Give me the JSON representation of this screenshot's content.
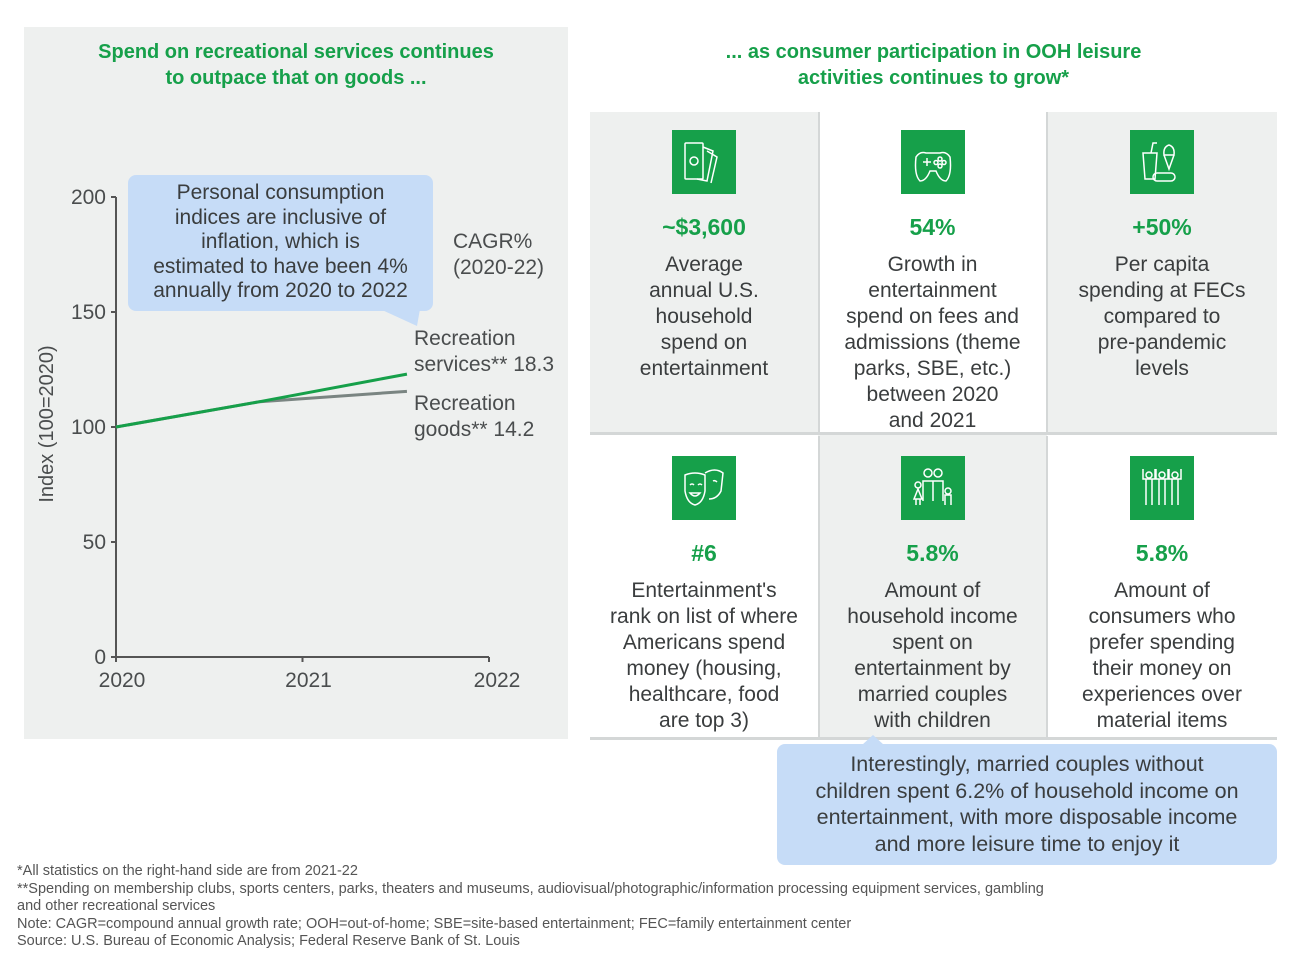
{
  "left": {
    "title_line1": "Spend on recreational services continues",
    "title_line2": "to outpace that on goods ...",
    "callout": [
      "Personal consumption",
      "indices are inclusive of",
      "inflation, which is",
      "estimated to have been 4%",
      "annually from 2020 to 2022"
    ],
    "cagr_label": [
      "CAGR%",
      "(2020-22)"
    ],
    "series_labels": {
      "services": [
        "Recreation",
        "services** 18.3"
      ],
      "goods": [
        "Recreation",
        "goods** 14.2"
      ]
    }
  },
  "chart_data": {
    "type": "line",
    "title": "",
    "xlabel": "",
    "ylabel": "Index (100=2020)",
    "xlim": [
      2020,
      2022
    ],
    "ylim": [
      0,
      200
    ],
    "x_ticks": [
      "2020",
      "2021",
      "2022"
    ],
    "y_ticks": [
      "0",
      "50",
      "100",
      "150",
      "200"
    ],
    "grid": false,
    "series": [
      {
        "name": "Recreation services** 18.3",
        "color": "#16a04a",
        "x": [
          2020,
          2020.77,
          2021.56
        ],
        "values": [
          100,
          111,
          123
        ]
      },
      {
        "name": "Recreation goods** 14.2",
        "color": "#7a8582",
        "x": [
          2020,
          2020.77,
          2021.56
        ],
        "values": [
          100,
          111,
          115.5
        ]
      }
    ]
  },
  "right": {
    "title_line1": "... as consumer participation in OOH leisure",
    "title_line2": "activities continues to grow*",
    "cells": [
      {
        "icon": "money-icon",
        "stat": "~$3,600",
        "desc": [
          "Average",
          "annual U.S.",
          "household",
          "spend on",
          "entertainment"
        ]
      },
      {
        "icon": "gamepad-icon",
        "stat": "54%",
        "desc": [
          "Growth in",
          "entertainment",
          "spend on fees and",
          "admissions (theme",
          "parks, SBE, etc.)",
          "between 2020",
          "and 2021"
        ]
      },
      {
        "icon": "snacks-icon",
        "stat": "+50%",
        "desc": [
          "Per capita",
          "spending at FECs",
          "compared to",
          "pre-pandemic",
          "levels"
        ]
      },
      {
        "icon": "theater-masks-icon",
        "stat": "#6",
        "desc": [
          "Entertainment's",
          "rank on list of where",
          "Americans spend",
          "money (housing,",
          "healthcare, food",
          "are top 3)"
        ]
      },
      {
        "icon": "family-icon",
        "stat": "5.8%",
        "desc": [
          "Amount of",
          "household income",
          "spent on",
          "entertainment by",
          "married couples",
          "with children"
        ]
      },
      {
        "icon": "cheering-people-icon",
        "stat": "5.8%",
        "desc": [
          "Amount of",
          "consumers who",
          "prefer spending",
          "their money on",
          "experiences over",
          "material items"
        ]
      }
    ],
    "callout": [
      "Interestingly, married couples without",
      "children spent 6.2% of household income on",
      "entertainment, with more disposable income",
      "and more leisure time to enjoy it"
    ]
  },
  "footnotes": [
    "*All statistics on the right-hand side are from 2021-22",
    "**Spending on membership clubs, sports centers, parks, theaters and museums, audiovisual/photographic/information processing equipment services, gambling",
    "and other recreational services",
    "Note: CAGR=compound annual growth rate; OOH=out-of-home; SBE=site-based entertainment; FEC=family entertainment center",
    "Source: U.S. Bureau of Economic Analysis; Federal Reserve Bank of St. Louis"
  ]
}
